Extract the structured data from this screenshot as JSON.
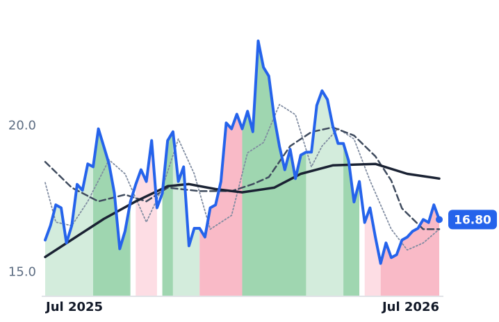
{
  "chart_data": {
    "type": "line",
    "ylim": [
      14.2,
      24.3
    ],
    "yticks": [
      {
        "value": 15,
        "label": "15.0"
      },
      {
        "value": 20,
        "label": "20.0"
      }
    ],
    "xlim": [
      0,
      74
    ],
    "xticks": [
      {
        "value": 0,
        "label": "Jul 2025"
      },
      {
        "value": 74,
        "label": "Jul 2026"
      }
    ],
    "grid": false,
    "series": [
      {
        "color": "#2563eb",
        "style": "solid",
        "width": 4,
        "values": [
          16.1,
          16.6,
          17.3,
          17.2,
          16.0,
          16.6,
          18.0,
          17.8,
          18.7,
          18.6,
          19.9,
          19.3,
          18.7,
          17.7,
          15.8,
          16.4,
          17.4,
          18.0,
          18.5,
          18.1,
          19.5,
          17.2,
          17.7,
          19.5,
          19.8,
          18.1,
          18.6,
          15.9,
          16.5,
          16.5,
          16.2,
          17.2,
          17.3,
          18.1,
          20.1,
          19.9,
          20.4,
          19.9,
          20.5,
          19.8,
          22.9,
          22.0,
          21.7,
          20.3,
          19.3,
          18.5,
          19.2,
          18.2,
          19.0,
          19.1,
          19.1,
          20.7,
          21.2,
          20.9,
          20.0,
          19.4,
          19.4,
          18.8,
          17.4,
          18.1,
          16.7,
          17.2,
          16.2,
          15.3,
          16.0,
          15.5,
          15.6,
          16.1,
          16.2,
          16.4,
          16.5,
          16.8,
          16.7,
          17.3,
          16.8
        ],
        "last_value_label": "16.80"
      },
      {
        "color": "#1a2233",
        "style": "solid",
        "width": 3.5,
        "x": [
          0,
          5,
          11,
          17,
          23,
          27,
          32,
          37,
          43,
          48,
          54,
          62,
          68,
          74
        ],
        "values": [
          15.52,
          16.11,
          16.82,
          17.42,
          17.94,
          18.01,
          17.84,
          17.73,
          17.89,
          18.36,
          18.65,
          18.7,
          18.36,
          18.2
        ]
      },
      {
        "color": "#3f4b5e",
        "style": "dashed",
        "width": 2.5,
        "x": [
          0,
          5,
          10,
          15,
          19,
          23,
          29,
          35,
          39,
          42,
          46,
          50,
          54,
          58,
          62,
          65,
          67,
          71,
          74
        ],
        "values": [
          18.77,
          17.89,
          17.42,
          17.65,
          17.42,
          17.89,
          17.77,
          17.77,
          18.01,
          18.25,
          19.31,
          19.79,
          19.95,
          19.67,
          18.96,
          18.13,
          17.18,
          16.47,
          16.47
        ]
      },
      {
        "color": "#7f8ba0",
        "style": "dotted",
        "width": 1.8,
        "x": [
          0,
          2,
          5,
          8,
          12,
          15,
          19,
          22,
          25,
          28,
          31,
          35,
          38,
          41,
          44,
          47,
          50,
          52,
          55,
          58,
          61,
          65,
          68,
          71,
          74
        ],
        "values": [
          18.06,
          16.71,
          16.59,
          17.42,
          18.84,
          18.36,
          16.71,
          17.89,
          19.55,
          18.36,
          16.47,
          16.94,
          19.08,
          19.43,
          20.73,
          20.38,
          18.6,
          19.31,
          19.91,
          19.55,
          18.13,
          16.47,
          15.76,
          16.0,
          16.47
        ]
      }
    ],
    "fill_segments": [
      {
        "from": 0,
        "to": 9,
        "color": "#d3ecdc"
      },
      {
        "from": 9,
        "to": 16,
        "color": "#9fd6b0"
      },
      {
        "from": 17,
        "to": 21,
        "color": "#fddde4"
      },
      {
        "from": 22,
        "to": 24,
        "color": "#9fd6b0"
      },
      {
        "from": 24,
        "to": 29,
        "color": "#d3ecdc"
      },
      {
        "from": 29,
        "to": 37,
        "color": "#f9bac7"
      },
      {
        "from": 37,
        "to": 49,
        "color": "#9fd6b0"
      },
      {
        "from": 49,
        "to": 56,
        "color": "#d3ecdc"
      },
      {
        "from": 56,
        "to": 59,
        "color": "#9fd6b0"
      },
      {
        "from": 60,
        "to": 63,
        "color": "#fddde4"
      },
      {
        "from": 63,
        "to": 74,
        "color": "#f9bac7"
      }
    ]
  }
}
